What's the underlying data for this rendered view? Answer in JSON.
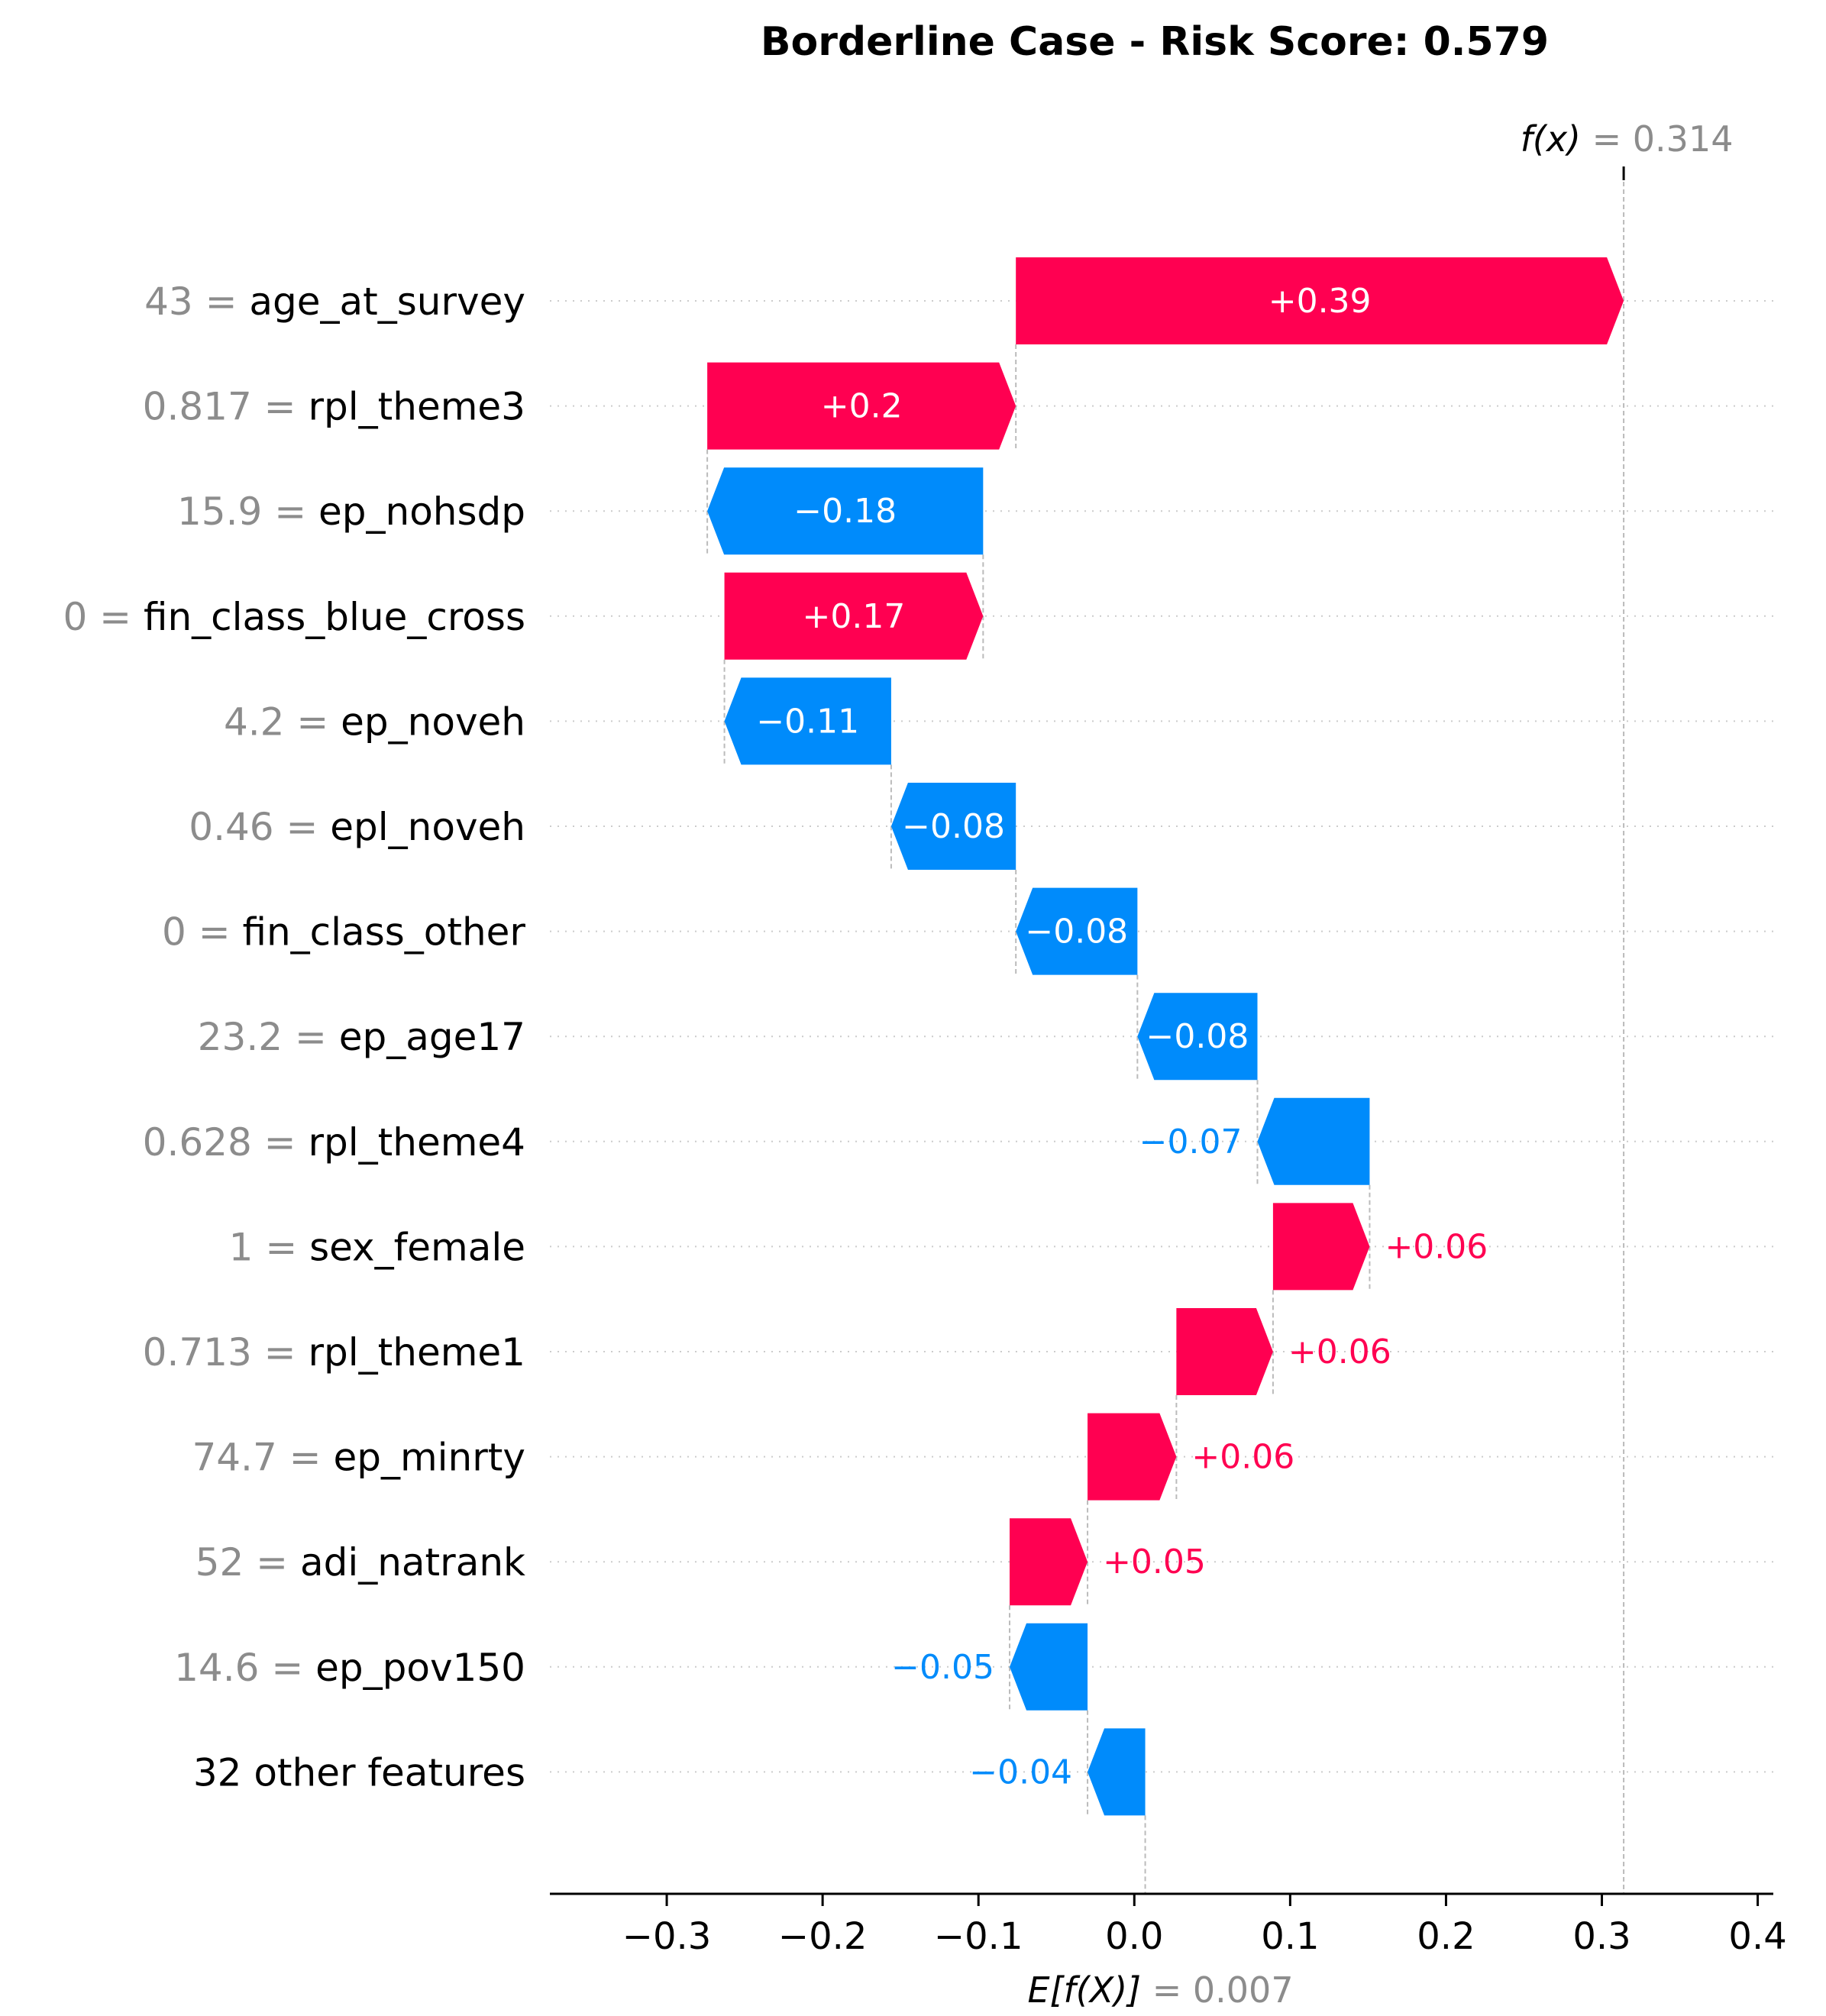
{
  "chart_data": {
    "type": "waterfall",
    "title": "Borderline Case - Risk Score: 0.579",
    "base_value": 0.007,
    "base_value_label": "0.007",
    "base_value_prefix": "E[f(X)]",
    "output_value": 0.314,
    "output_value_label": "0.314",
    "output_value_prefix": "f(x)",
    "xlim": [
      -0.375,
      0.41
    ],
    "xticks": [
      -0.3,
      -0.2,
      -0.1,
      0.0,
      0.1,
      0.2,
      0.3,
      0.4
    ],
    "xtick_labels": [
      "−0.3",
      "−0.2",
      "−0.1",
      "0.0",
      "0.1",
      "0.2",
      "0.3",
      "0.4"
    ],
    "grid": "horizontal dotted per row",
    "colors": {
      "positive": "#ff0051",
      "negative": "#008bfb",
      "value_text": "#8c8c8c",
      "guide": "#bbbbbb"
    },
    "features": [
      {
        "value": "43",
        "name": "age_at_survey",
        "start": -0.076,
        "end": 0.314,
        "label": "+0.39"
      },
      {
        "value": "0.817",
        "name": "rpl_theme3",
        "start": -0.274,
        "end": -0.076,
        "label": "+0.2"
      },
      {
        "value": "15.9",
        "name": "ep_nohsdp",
        "start": -0.097,
        "end": -0.274,
        "label": "−0.18"
      },
      {
        "value": "0",
        "name": "fin_class_blue_cross",
        "start": -0.263,
        "end": -0.097,
        "label": "+0.17"
      },
      {
        "value": "4.2",
        "name": "ep_noveh",
        "start": -0.156,
        "end": -0.263,
        "label": "−0.11"
      },
      {
        "value": "0.46",
        "name": "epl_noveh",
        "start": -0.076,
        "end": -0.156,
        "label": "−0.08"
      },
      {
        "value": "0",
        "name": "fin_class_other",
        "start": 0.002,
        "end": -0.076,
        "label": "−0.08"
      },
      {
        "value": "23.2",
        "name": "ep_age17",
        "start": 0.079,
        "end": 0.002,
        "label": "−0.08"
      },
      {
        "value": "0.628",
        "name": "rpl_theme4",
        "start": 0.151,
        "end": 0.079,
        "label": "−0.07"
      },
      {
        "value": "1",
        "name": "sex_female",
        "start": 0.089,
        "end": 0.151,
        "label": "+0.06"
      },
      {
        "value": "0.713",
        "name": "rpl_theme1",
        "start": 0.027,
        "end": 0.089,
        "label": "+0.06"
      },
      {
        "value": "74.7",
        "name": "ep_minrty",
        "start": -0.03,
        "end": 0.027,
        "label": "+0.06"
      },
      {
        "value": "52",
        "name": "adi_natrank",
        "start": -0.08,
        "end": -0.03,
        "label": "+0.05"
      },
      {
        "value": "14.6",
        "name": "ep_pov150",
        "start": -0.03,
        "end": -0.08,
        "label": "−0.05"
      },
      {
        "value": "",
        "name": "32 other features",
        "start": 0.007,
        "end": -0.03,
        "label": "−0.04"
      }
    ]
  }
}
